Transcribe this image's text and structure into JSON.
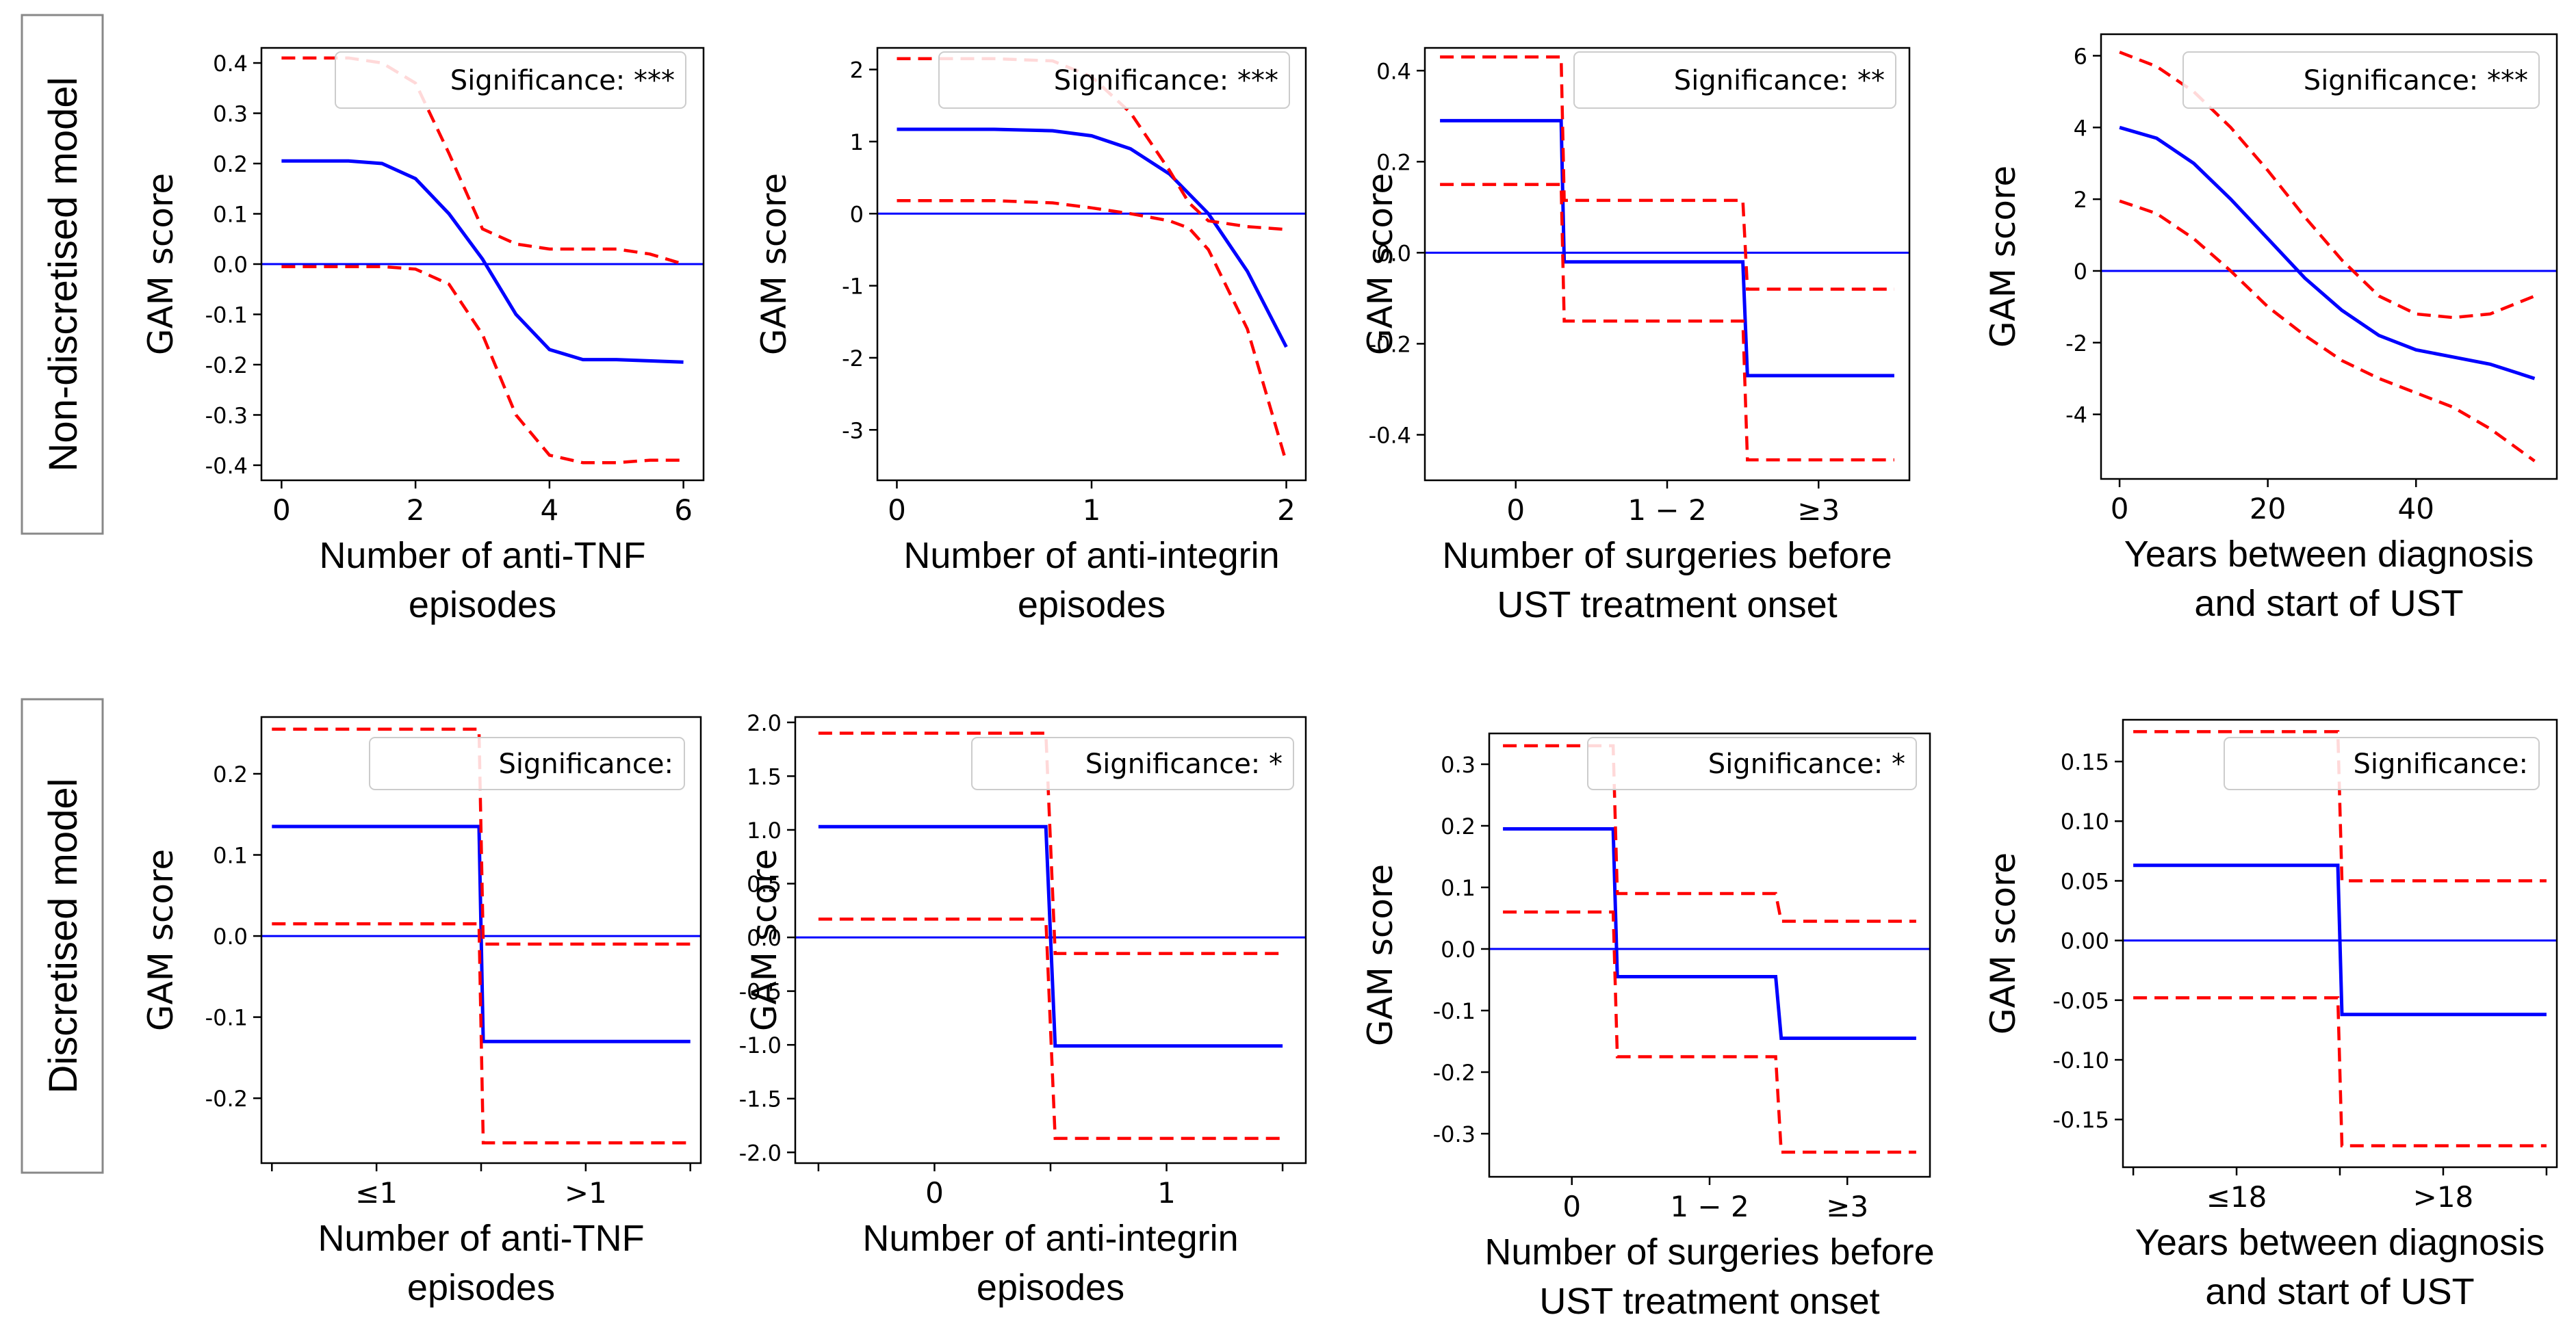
{
  "row_labels": [
    "Non-discretised model",
    "Discretised model"
  ],
  "colors": {
    "mean": "#0000ff",
    "ci": "#ff0000",
    "zero_line": "#0000ff",
    "frame": "#000000"
  },
  "chart_data": [
    {
      "type": "line",
      "row": 0,
      "col": 0,
      "ylabel": "GAM score",
      "xlabel": [
        "Number of anti-TNF",
        "episodes"
      ],
      "significance": "Significance: ***",
      "xlim": [
        -0.3,
        6.3
      ],
      "ylim": [
        -0.43,
        0.43
      ],
      "xticks": [
        0,
        2,
        4,
        6
      ],
      "xticklabels": [
        "0",
        "2",
        "4",
        "6"
      ],
      "yticks": [
        0.4,
        0.3,
        0.2,
        0.1,
        0.0,
        -0.1,
        -0.2,
        -0.3,
        -0.4
      ],
      "yticklabels": [
        "0.4",
        "0.3",
        "0.2",
        "0.1",
        "0.0",
        "-0.1",
        "-0.2",
        "-0.3",
        "-0.4"
      ],
      "zero_line": 0,
      "series": [
        {
          "name": "estimate",
          "style": "solid",
          "x": [
            0,
            1,
            1.5,
            2,
            2.5,
            3,
            3.5,
            4,
            4.5,
            5,
            6
          ],
          "y": [
            0.205,
            0.205,
            0.2,
            0.17,
            0.1,
            0.01,
            -0.1,
            -0.17,
            -0.19,
            -0.19,
            -0.195
          ]
        },
        {
          "name": "upper",
          "style": "dashed",
          "x": [
            0,
            1,
            1.5,
            2,
            2.5,
            3,
            3.5,
            4,
            4.5,
            5,
            5.5,
            6
          ],
          "y": [
            0.41,
            0.41,
            0.4,
            0.36,
            0.22,
            0.07,
            0.04,
            0.03,
            0.03,
            0.03,
            0.02,
            0.0
          ]
        },
        {
          "name": "lower",
          "style": "dashed",
          "x": [
            0,
            1,
            1.5,
            2,
            2.5,
            3,
            3.5,
            4,
            4.5,
            5,
            5.5,
            6
          ],
          "y": [
            -0.005,
            -0.005,
            -0.005,
            -0.01,
            -0.04,
            -0.14,
            -0.3,
            -0.38,
            -0.395,
            -0.395,
            -0.39,
            -0.39
          ]
        }
      ]
    },
    {
      "type": "line",
      "row": 0,
      "col": 1,
      "ylabel": "GAM score",
      "xlabel": [
        "Number of anti-integrin",
        "episodes"
      ],
      "significance": "Significance: ***",
      "xlim": [
        -0.1,
        2.1
      ],
      "ylim": [
        -3.7,
        2.3
      ],
      "xticks": [
        0,
        1,
        2
      ],
      "xticklabels": [
        "0",
        "1",
        "2"
      ],
      "yticks": [
        2,
        1,
        0,
        -1,
        -2,
        -3
      ],
      "yticklabels": [
        "2",
        "1",
        "0",
        "-1",
        "-2",
        "-3"
      ],
      "zero_line": 0,
      "series": [
        {
          "name": "estimate",
          "style": "solid",
          "x": [
            0,
            0.5,
            0.8,
            1.0,
            1.2,
            1.4,
            1.6,
            1.8,
            2.0
          ],
          "y": [
            1.17,
            1.17,
            1.15,
            1.08,
            0.9,
            0.55,
            0.0,
            -0.8,
            -1.85
          ]
        },
        {
          "name": "upper",
          "style": "dashed",
          "x": [
            0,
            0.5,
            0.8,
            1.0,
            1.2,
            1.4,
            1.5,
            1.6,
            1.8,
            2.0
          ],
          "y": [
            2.15,
            2.15,
            2.12,
            1.9,
            1.4,
            0.6,
            0.15,
            -0.1,
            -0.18,
            -0.22
          ]
        },
        {
          "name": "lower",
          "style": "dashed",
          "x": [
            0,
            0.5,
            0.8,
            1.0,
            1.2,
            1.4,
            1.5,
            1.6,
            1.8,
            2.0
          ],
          "y": [
            0.18,
            0.18,
            0.15,
            0.08,
            0.0,
            -0.1,
            -0.2,
            -0.5,
            -1.6,
            -3.45
          ]
        }
      ]
    },
    {
      "type": "line",
      "row": 0,
      "col": 2,
      "ylabel": "GAM score",
      "xlabel": [
        "Number of surgeries before",
        "UST treatment onset"
      ],
      "significance": "Significance: **",
      "xlim": [
        -0.6,
        2.6
      ],
      "ylim": [
        -0.5,
        0.45
      ],
      "xticks": [
        0,
        1,
        2
      ],
      "xticklabels": [
        "0",
        "1 − 2",
        "≥3"
      ],
      "yticks": [
        0.4,
        0.2,
        0.0,
        -0.2,
        -0.4
      ],
      "yticklabels": [
        "0.4",
        "0.2",
        "0.0",
        "-0.2",
        "-0.4"
      ],
      "zero_line": 0,
      "series": [
        {
          "name": "estimate",
          "style": "solid",
          "x": [
            -0.5,
            0.3,
            0.32,
            1.5,
            1.53,
            2.5
          ],
          "y": [
            0.29,
            0.29,
            -0.02,
            -0.02,
            -0.27,
            -0.27
          ]
        },
        {
          "name": "upper",
          "style": "dashed",
          "x": [
            -0.5,
            0.3,
            0.32,
            1.5,
            1.53,
            2.5
          ],
          "y": [
            0.43,
            0.43,
            0.115,
            0.115,
            -0.08,
            -0.08
          ]
        },
        {
          "name": "lower",
          "style": "dashed",
          "x": [
            -0.5,
            0.3,
            0.32,
            1.5,
            1.53,
            2.5
          ],
          "y": [
            0.15,
            0.15,
            -0.15,
            -0.15,
            -0.455,
            -0.455
          ]
        }
      ]
    },
    {
      "type": "line",
      "row": 0,
      "col": 3,
      "ylabel": "GAM score",
      "xlabel": [
        "Years between diagnosis",
        "and start of UST"
      ],
      "significance": "Significance: ***",
      "xlim": [
        -2.5,
        59
      ],
      "ylim": [
        -5.8,
        6.6
      ],
      "xticks": [
        0,
        20,
        40
      ],
      "xticklabels": [
        "0",
        "20",
        "40"
      ],
      "yticks": [
        6,
        4,
        2,
        0,
        -2,
        -4
      ],
      "yticklabels": [
        "6",
        "4",
        "2",
        "0",
        "-2",
        "-4"
      ],
      "zero_line": 0,
      "series": [
        {
          "name": "estimate",
          "style": "solid",
          "x": [
            0,
            5,
            10,
            15,
            20,
            25,
            30,
            35,
            40,
            45,
            50,
            56
          ],
          "y": [
            4.0,
            3.7,
            3.0,
            2.0,
            0.9,
            -0.2,
            -1.1,
            -1.8,
            -2.2,
            -2.4,
            -2.6,
            -3.0
          ]
        },
        {
          "name": "upper",
          "style": "dashed",
          "x": [
            0,
            5,
            10,
            15,
            20,
            25,
            30,
            35,
            40,
            45,
            50,
            56
          ],
          "y": [
            6.1,
            5.7,
            5.0,
            4.0,
            2.8,
            1.5,
            0.3,
            -0.7,
            -1.2,
            -1.3,
            -1.2,
            -0.7
          ]
        },
        {
          "name": "lower",
          "style": "dashed",
          "x": [
            0,
            5,
            10,
            15,
            20,
            25,
            30,
            35,
            40,
            45,
            50,
            56
          ],
          "y": [
            1.95,
            1.6,
            0.9,
            0.0,
            -1.0,
            -1.8,
            -2.5,
            -3.0,
            -3.4,
            -3.8,
            -4.4,
            -5.3
          ]
        }
      ]
    },
    {
      "type": "line",
      "row": 1,
      "col": 0,
      "ylabel": "GAM score",
      "xlabel": [
        "Number of anti-TNF",
        "episodes"
      ],
      "significance": "Significance:",
      "xlim": [
        -0.1,
        4.1
      ],
      "ylim": [
        -0.28,
        0.27
      ],
      "xticks": [
        0,
        1,
        2,
        3,
        4
      ],
      "xticklabels": [
        "",
        "≤1",
        "",
        ">1",
        ""
      ],
      "yticks": [
        0.2,
        0.1,
        0.0,
        -0.1,
        -0.2
      ],
      "yticklabels": [
        "0.2",
        "0.1",
        "0.0",
        "-0.1",
        "-0.2"
      ],
      "zero_line": 0,
      "series": [
        {
          "name": "estimate",
          "style": "solid",
          "x": [
            0,
            1.98,
            2.02,
            4
          ],
          "y": [
            0.135,
            0.135,
            -0.13,
            -0.13
          ]
        },
        {
          "name": "upper",
          "style": "dashed",
          "x": [
            0,
            1.98,
            2.02,
            4
          ],
          "y": [
            0.255,
            0.255,
            -0.01,
            -0.01
          ]
        },
        {
          "name": "lower",
          "style": "dashed",
          "x": [
            0,
            1.98,
            2.02,
            4
          ],
          "y": [
            0.015,
            0.015,
            -0.255,
            -0.255
          ]
        }
      ]
    },
    {
      "type": "line",
      "row": 1,
      "col": 1,
      "ylabel": "GAM score",
      "xlabel": [
        "Number of anti-integrin",
        "episodes"
      ],
      "significance": "Significance: *",
      "xlim": [
        -0.6,
        1.6
      ],
      "ylim": [
        -2.1,
        2.05
      ],
      "xticks": [
        -0.5,
        0,
        0.5,
        1,
        1.5
      ],
      "xticklabels": [
        "",
        "0",
        "",
        "1",
        ""
      ],
      "yticks": [
        2.0,
        1.5,
        1.0,
        0.5,
        0.0,
        -0.5,
        -1.0,
        -1.5,
        -2.0
      ],
      "yticklabels": [
        "2.0",
        "1.5",
        "1.0",
        "0.5",
        "0.0",
        "-0.5",
        "-1.0",
        "-1.5",
        "-2.0"
      ],
      "zero_line": 0,
      "series": [
        {
          "name": "estimate",
          "style": "solid",
          "x": [
            -0.5,
            0.48,
            0.52,
            1.5
          ],
          "y": [
            1.03,
            1.03,
            -1.01,
            -1.01
          ]
        },
        {
          "name": "upper",
          "style": "dashed",
          "x": [
            -0.5,
            0.48,
            0.52,
            1.5
          ],
          "y": [
            1.9,
            1.9,
            -0.15,
            -0.15
          ]
        },
        {
          "name": "lower",
          "style": "dashed",
          "x": [
            -0.5,
            0.48,
            0.52,
            1.5
          ],
          "y": [
            0.17,
            0.17,
            -1.87,
            -1.87
          ]
        }
      ]
    },
    {
      "type": "line",
      "row": 1,
      "col": 2,
      "ylabel": "GAM score",
      "xlabel": [
        "Number of surgeries before",
        "UST treatment onset"
      ],
      "significance": "Significance: *",
      "xlim": [
        -0.6,
        2.6
      ],
      "ylim": [
        -0.37,
        0.35
      ],
      "xticks": [
        0,
        1,
        2
      ],
      "xticklabels": [
        "0",
        "1 − 2",
        "≥3"
      ],
      "yticks": [
        0.3,
        0.2,
        0.1,
        0.0,
        -0.1,
        -0.2,
        -0.3
      ],
      "yticklabels": [
        "0.3",
        "0.2",
        "0.1",
        "0.0",
        "-0.1",
        "-0.2",
        "-0.3"
      ],
      "zero_line": 0,
      "series": [
        {
          "name": "estimate",
          "style": "solid",
          "x": [
            -0.5,
            0.3,
            0.33,
            1.48,
            1.52,
            2.5
          ],
          "y": [
            0.195,
            0.195,
            -0.045,
            -0.045,
            -0.145,
            -0.145
          ]
        },
        {
          "name": "upper",
          "style": "dashed",
          "x": [
            -0.5,
            0.3,
            0.33,
            1.48,
            1.52,
            2.5
          ],
          "y": [
            0.33,
            0.33,
            0.09,
            0.09,
            0.045,
            0.045
          ]
        },
        {
          "name": "lower",
          "style": "dashed",
          "x": [
            -0.5,
            0.3,
            0.33,
            1.48,
            1.52,
            2.5
          ],
          "y": [
            0.06,
            0.06,
            -0.175,
            -0.175,
            -0.33,
            -0.33
          ]
        }
      ]
    },
    {
      "type": "line",
      "row": 1,
      "col": 3,
      "ylabel": "GAM score",
      "xlabel": [
        "Years between diagnosis",
        "and start of UST"
      ],
      "significance": "Significance:",
      "xlim": [
        -0.1,
        4.1
      ],
      "ylim": [
        -0.19,
        0.185
      ],
      "xticks": [
        0,
        1,
        2,
        3,
        4
      ],
      "xticklabels": [
        "",
        "≤18",
        "",
        ">18",
        ""
      ],
      "yticks": [
        0.15,
        0.1,
        0.05,
        0.0,
        -0.05,
        -0.1,
        -0.15
      ],
      "yticklabels": [
        "0.15",
        "0.10",
        "0.05",
        "0.00",
        "-0.05",
        "-0.10",
        "-0.15"
      ],
      "zero_line": 0,
      "series": [
        {
          "name": "estimate",
          "style": "solid",
          "x": [
            0,
            1.98,
            2.02,
            4
          ],
          "y": [
            0.063,
            0.063,
            -0.062,
            -0.062
          ]
        },
        {
          "name": "upper",
          "style": "dashed",
          "x": [
            0,
            1.98,
            2.02,
            4
          ],
          "y": [
            0.175,
            0.175,
            0.05,
            0.05
          ]
        },
        {
          "name": "lower",
          "style": "dashed",
          "x": [
            0,
            1.98,
            2.02,
            4
          ],
          "y": [
            -0.048,
            -0.048,
            -0.172,
            -0.172
          ]
        }
      ]
    }
  ]
}
